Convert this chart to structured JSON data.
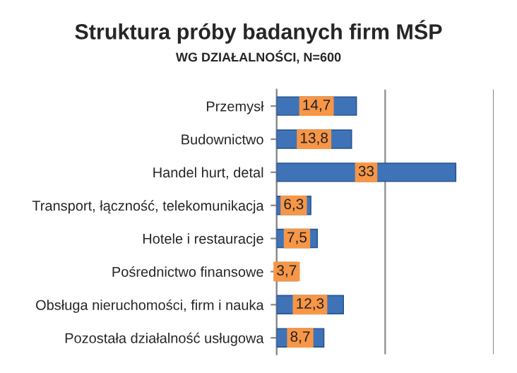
{
  "chart_data": {
    "type": "bar",
    "orientation": "horizontal",
    "title": "Struktura próby badanych firm MŚP",
    "subtitle": "WG DZIAŁALNOŚCI, N=600",
    "categories": [
      "Przemysł",
      "Budownictwo",
      "Handel hurt, detal",
      "Transport, łączność, telekomunikacja",
      "Hotele i restauracje",
      "Pośrednictwo finansowe",
      "Obsługa nieruchomości, firm i nauka",
      "Pozostała działalność usługowa"
    ],
    "values": [
      14.7,
      13.8,
      33,
      6.3,
      7.5,
      3.7,
      12.3,
      8.7
    ],
    "value_labels": [
      "14,7",
      "13,8",
      "33",
      "6,3",
      "7,5",
      "3,7",
      "12,3",
      "8,7"
    ],
    "color": "#3f73b8",
    "xlim": [
      0,
      40
    ],
    "xticks": [
      {
        "value": 0,
        "label": null
      },
      {
        "value": 20,
        "label": null
      },
      {
        "value": 40,
        "label": null
      }
    ],
    "grid": "x",
    "tick_labels": "y"
  }
}
